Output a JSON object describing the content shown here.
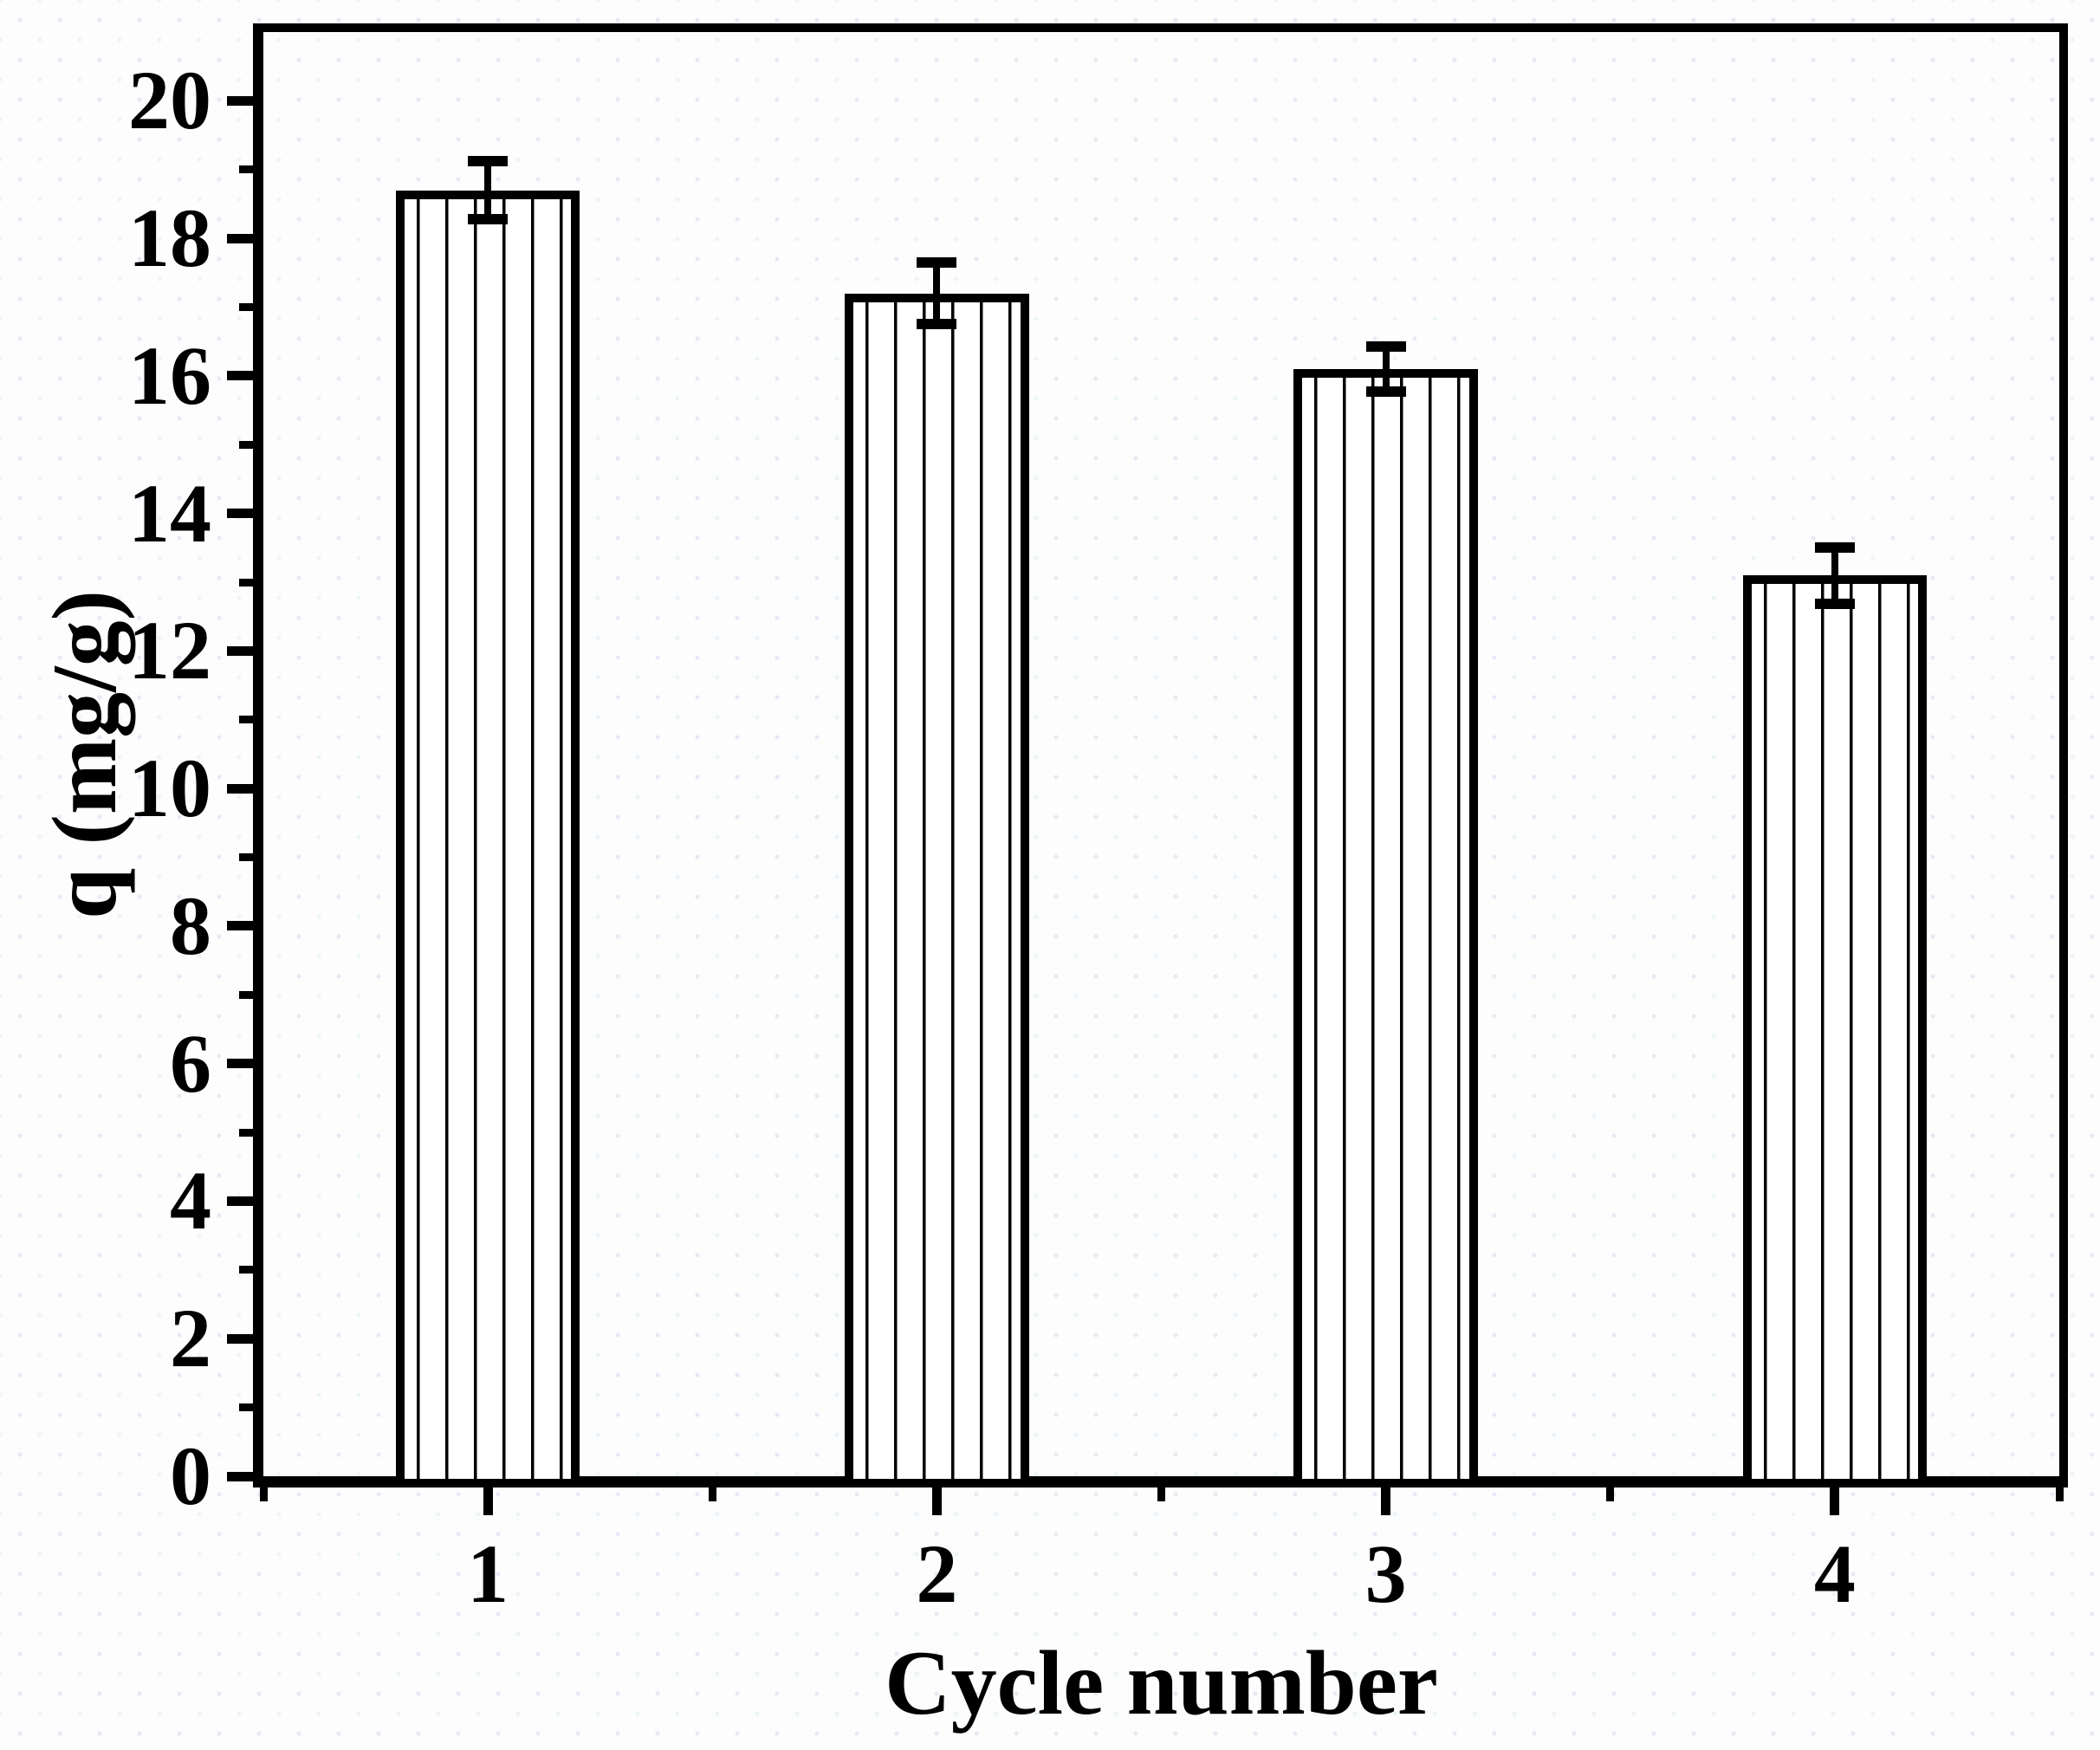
{
  "figure": {
    "ink_color": "#000000",
    "background_color": "#fdfdfd"
  },
  "chart_data": {
    "type": "bar",
    "title": "",
    "xlabel": "Cycle number",
    "ylabel": "q (mg/g)",
    "categories": [
      1,
      2,
      3,
      4
    ],
    "values": [
      18.7,
      17.2,
      16.1,
      13.1
    ],
    "error_bars": [
      0.42,
      0.45,
      0.33,
      0.41
    ],
    "x_tick_labels": [
      "1",
      "2",
      "3",
      "4"
    ],
    "y_tick_values": [
      0,
      2,
      4,
      6,
      8,
      10,
      12,
      14,
      16,
      18,
      20
    ],
    "y_tick_labels": [
      "0",
      "2",
      "4",
      "6",
      "8",
      "10",
      "12",
      "14",
      "16",
      "18",
      "20"
    ],
    "y_minor_tick_values": [
      1,
      3,
      5,
      7,
      9,
      11,
      13,
      15,
      17,
      19
    ],
    "x_major_tick_values": [
      1,
      2,
      3,
      4
    ],
    "x_minor_tick_values": [
      0.5,
      1.5,
      2.5,
      3.5,
      4.5
    ],
    "xlim": [
      0.5,
      4.5
    ],
    "ylim": [
      0,
      21
    ],
    "bar_width_units": 0.41,
    "bar_fill": "#ffffff",
    "bar_hatch": "vertical-lines",
    "bar_border_color": "#000000",
    "grid": false,
    "legend": null,
    "frame": "full-box"
  }
}
